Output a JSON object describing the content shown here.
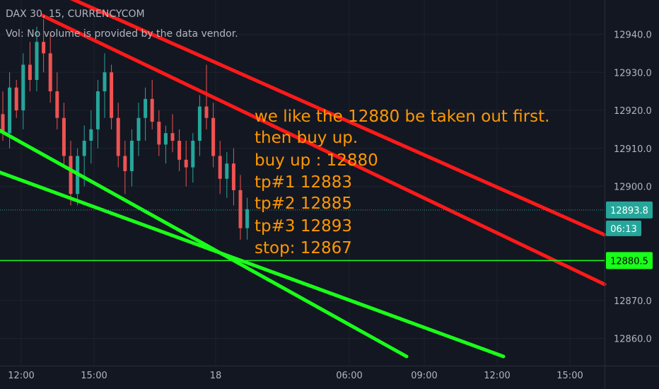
{
  "header": {
    "symbol": "DAX 30, 15, CURRENCYCOM",
    "volume_note": "Vol: No volume is provided by the data vendor."
  },
  "annotation": {
    "lines": [
      "we like the 12880 be taken out first.",
      "then buy up.",
      "buy up : 12880",
      "tp#1 12883",
      "tp#2 12885",
      "tp#3  12893",
      "stop: 12867"
    ],
    "color": "#ff9800"
  },
  "price_axis": {
    "ticks": [
      "12940.0",
      "12930.0",
      "12920.0",
      "12910.0",
      "12900.0",
      "12870.0",
      "12860.0"
    ],
    "tick_values": [
      12940,
      12930,
      12920,
      12910,
      12900,
      12870,
      12860
    ],
    "current_price": "12893.8",
    "countdown": "06:13",
    "level_label": "12880.5"
  },
  "time_axis": {
    "labels": [
      "12:00",
      "15:00",
      "18",
      "06:00",
      "09:00",
      "12:00",
      "15:00"
    ]
  },
  "colors": {
    "background": "#131722",
    "up_candle": "#26a69a",
    "down_candle": "#ef5350",
    "channel_red": "#ff1a1a",
    "channel_green": "#1aff1a",
    "horizontal_level": "#1aff1a",
    "price_badge": "#26a69a"
  },
  "chart_data": {
    "type": "candlestick",
    "title": "DAX 30, 15, CURRENCYCOM",
    "ylim": [
      12851,
      12948
    ],
    "current_price": 12893.8,
    "horizontal_level": 12880.5,
    "candles": [
      [
        12919,
        12925,
        12912,
        12914
      ],
      [
        12914,
        12930,
        12910,
        12926
      ],
      [
        12926,
        12928,
        12918,
        12920
      ],
      [
        12920,
        12935,
        12915,
        12932
      ],
      [
        12932,
        12938,
        12925,
        12928
      ],
      [
        12928,
        12942,
        12925,
        12938
      ],
      [
        12938,
        12944,
        12930,
        12935
      ],
      [
        12935,
        12940,
        12922,
        12925
      ],
      [
        12925,
        12930,
        12915,
        12918
      ],
      [
        12918,
        12922,
        12905,
        12908
      ],
      [
        12908,
        12912,
        12895,
        12898
      ],
      [
        12898,
        12910,
        12895,
        12908
      ],
      [
        12908,
        12916,
        12900,
        12912
      ],
      [
        12912,
        12920,
        12906,
        12915
      ],
      [
        12915,
        12928,
        12910,
        12925
      ],
      [
        12925,
        12935,
        12918,
        12930
      ],
      [
        12930,
        12932,
        12915,
        12918
      ],
      [
        12918,
        12922,
        12905,
        12908
      ],
      [
        12908,
        12912,
        12898,
        12904
      ],
      [
        12904,
        12915,
        12900,
        12912
      ],
      [
        12912,
        12922,
        12908,
        12918
      ],
      [
        12918,
        12926,
        12912,
        12923
      ],
      [
        12923,
        12928,
        12915,
        12917
      ],
      [
        12917,
        12920,
        12908,
        12911
      ],
      [
        12911,
        12916,
        12906,
        12914
      ],
      [
        12914,
        12919,
        12909,
        12912
      ],
      [
        12912,
        12915,
        12904,
        12907
      ],
      [
        12907,
        12912,
        12900,
        12905
      ],
      [
        12905,
        12914,
        12901,
        12912
      ],
      [
        12912,
        12924,
        12908,
        12921
      ],
      [
        12921,
        12932,
        12915,
        12918
      ],
      [
        12918,
        12922,
        12905,
        12908
      ],
      [
        12908,
        12912,
        12898,
        12902
      ],
      [
        12902,
        12909,
        12897,
        12906
      ],
      [
        12906,
        12910,
        12895,
        12899
      ],
      [
        12899,
        12903,
        12886,
        12889
      ],
      [
        12889,
        12897,
        12886,
        12894
      ]
    ],
    "channels": [
      {
        "color": "red",
        "start": [
          "12:00",
          12952
        ],
        "end": [
          "15:00 +1d",
          12884
        ]
      },
      {
        "color": "red",
        "start": [
          "12:00",
          12942
        ],
        "end": [
          "15:00 +1d",
          12874
        ]
      },
      {
        "color": "green",
        "start": [
          "12:00",
          12915
        ],
        "end": [
          "09:00",
          12858
        ]
      },
      {
        "color": "green",
        "start": [
          "12:00",
          12903
        ],
        "end": [
          "12:00 +1d",
          12858
        ]
      }
    ]
  }
}
